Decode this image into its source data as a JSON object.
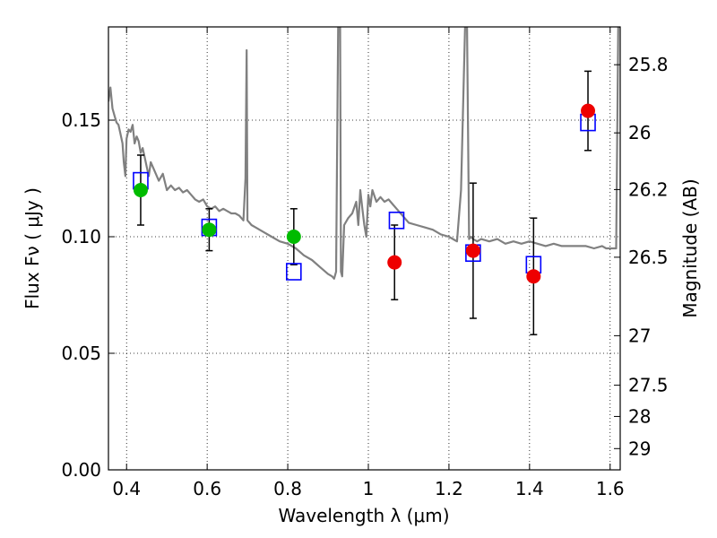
{
  "chart_data": {
    "type": "scatter",
    "xlabel": "Wavelength  λ (μm)",
    "ylabel": "Flux  Fν  ( μJy )",
    "y2label": "Magnitude (AB)",
    "xlim": [
      0.355,
      1.625
    ],
    "ylim": [
      0.0,
      0.19
    ],
    "grid": true,
    "x_ticks": [
      {
        "v": 0.4,
        "label": "0.4"
      },
      {
        "v": 0.6,
        "label": "0.6"
      },
      {
        "v": 0.8,
        "label": "0.8"
      },
      {
        "v": 1.0,
        "label": "1"
      },
      {
        "v": 1.2,
        "label": "1.2"
      },
      {
        "v": 1.4,
        "label": "1.4"
      },
      {
        "v": 1.6,
        "label": "1.6"
      }
    ],
    "y_ticks": [
      {
        "v": 0.0,
        "label": "0.00"
      },
      {
        "v": 0.05,
        "label": "0.05"
      },
      {
        "v": 0.1,
        "label": "0.10"
      },
      {
        "v": 0.15,
        "label": "0.15"
      }
    ],
    "y2_ticks": [
      {
        "mag": 25.8,
        "label": "25.8"
      },
      {
        "mag": 26.0,
        "label": "26"
      },
      {
        "mag": 26.2,
        "label": "26.2"
      },
      {
        "mag": 26.5,
        "label": "26.5"
      },
      {
        "mag": 27.0,
        "label": "27"
      },
      {
        "mag": 27.5,
        "label": "27.5"
      },
      {
        "mag": 28.0,
        "label": "28"
      },
      {
        "mag": 29.0,
        "label": "29"
      }
    ],
    "series": [
      {
        "kind": "line",
        "color": "#808080",
        "x": [
          0.355,
          0.36,
          0.365,
          0.37,
          0.375,
          0.38,
          0.385,
          0.39,
          0.393,
          0.397,
          0.4,
          0.405,
          0.41,
          0.415,
          0.42,
          0.425,
          0.43,
          0.435,
          0.44,
          0.445,
          0.45,
          0.455,
          0.46,
          0.47,
          0.48,
          0.49,
          0.5,
          0.51,
          0.52,
          0.53,
          0.54,
          0.55,
          0.56,
          0.57,
          0.58,
          0.59,
          0.6,
          0.61,
          0.62,
          0.63,
          0.64,
          0.65,
          0.66,
          0.67,
          0.68,
          0.69,
          0.695,
          0.698,
          0.7,
          0.705,
          0.71,
          0.72,
          0.74,
          0.76,
          0.78,
          0.8,
          0.82,
          0.84,
          0.86,
          0.88,
          0.9,
          0.91,
          0.915,
          0.92,
          0.925,
          0.928,
          0.93,
          0.932,
          0.935,
          0.94,
          0.95,
          0.96,
          0.97,
          0.975,
          0.98,
          0.985,
          0.99,
          0.995,
          1.0,
          1.005,
          1.01,
          1.02,
          1.03,
          1.04,
          1.05,
          1.06,
          1.07,
          1.08,
          1.09,
          1.1,
          1.12,
          1.14,
          1.16,
          1.18,
          1.2,
          1.22,
          1.23,
          1.24,
          1.245,
          1.25,
          1.255,
          1.26,
          1.27,
          1.28,
          1.3,
          1.32,
          1.34,
          1.36,
          1.38,
          1.4,
          1.42,
          1.44,
          1.46,
          1.48,
          1.5,
          1.52,
          1.54,
          1.56,
          1.58,
          1.59,
          1.6,
          1.61,
          1.615,
          1.62,
          1.625
        ],
        "y": [
          0.158,
          0.164,
          0.155,
          0.152,
          0.149,
          0.148,
          0.144,
          0.14,
          0.132,
          0.126,
          0.142,
          0.146,
          0.145,
          0.148,
          0.14,
          0.143,
          0.141,
          0.136,
          0.138,
          0.134,
          0.13,
          0.126,
          0.132,
          0.128,
          0.124,
          0.127,
          0.12,
          0.122,
          0.12,
          0.121,
          0.119,
          0.12,
          0.118,
          0.116,
          0.115,
          0.116,
          0.113,
          0.112,
          0.113,
          0.111,
          0.112,
          0.111,
          0.11,
          0.11,
          0.109,
          0.107,
          0.125,
          0.18,
          0.107,
          0.106,
          0.105,
          0.104,
          0.102,
          0.1,
          0.098,
          0.097,
          0.095,
          0.092,
          0.09,
          0.087,
          0.084,
          0.083,
          0.082,
          0.085,
          0.19,
          0.19,
          0.19,
          0.085,
          0.083,
          0.105,
          0.108,
          0.11,
          0.115,
          0.105,
          0.12,
          0.112,
          0.105,
          0.1,
          0.118,
          0.113,
          0.12,
          0.115,
          0.117,
          0.115,
          0.116,
          0.114,
          0.112,
          0.11,
          0.108,
          0.106,
          0.105,
          0.104,
          0.103,
          0.101,
          0.1,
          0.098,
          0.12,
          0.19,
          0.19,
          0.099,
          0.1,
          0.099,
          0.098,
          0.099,
          0.098,
          0.099,
          0.097,
          0.098,
          0.097,
          0.098,
          0.097,
          0.096,
          0.097,
          0.096,
          0.096,
          0.096,
          0.096,
          0.095,
          0.096,
          0.095,
          0.095,
          0.095,
          0.095,
          0.19,
          0.19
        ]
      },
      {
        "kind": "open-square",
        "color": "#0000ff",
        "x": [
          0.435,
          0.605,
          0.815,
          1.07,
          1.26,
          1.41,
          1.545
        ],
        "y": [
          0.124,
          0.104,
          0.085,
          0.107,
          0.093,
          0.088,
          0.149
        ]
      },
      {
        "kind": "filled-circle",
        "color": "#00bb00",
        "x": [
          0.435,
          0.605,
          0.815
        ],
        "y": [
          0.12,
          0.103,
          0.1
        ]
      },
      {
        "kind": "filled-circle",
        "color": "#ee0000",
        "x": [
          1.065,
          1.26,
          1.41,
          1.545
        ],
        "y": [
          0.089,
          0.094,
          0.083,
          0.154
        ]
      },
      {
        "kind": "errorbar",
        "color": "#000000",
        "x": [
          0.435,
          0.605,
          0.815,
          1.065,
          1.26,
          1.41,
          1.545
        ],
        "y": [
          0.12,
          0.103,
          0.1,
          0.089,
          0.094,
          0.083,
          0.154
        ],
        "yerr_low": [
          0.015,
          0.009,
          0.012,
          0.016,
          0.029,
          0.025,
          0.017
        ],
        "yerr_high": [
          0.015,
          0.009,
          0.012,
          0.016,
          0.029,
          0.025,
          0.017
        ]
      }
    ]
  }
}
